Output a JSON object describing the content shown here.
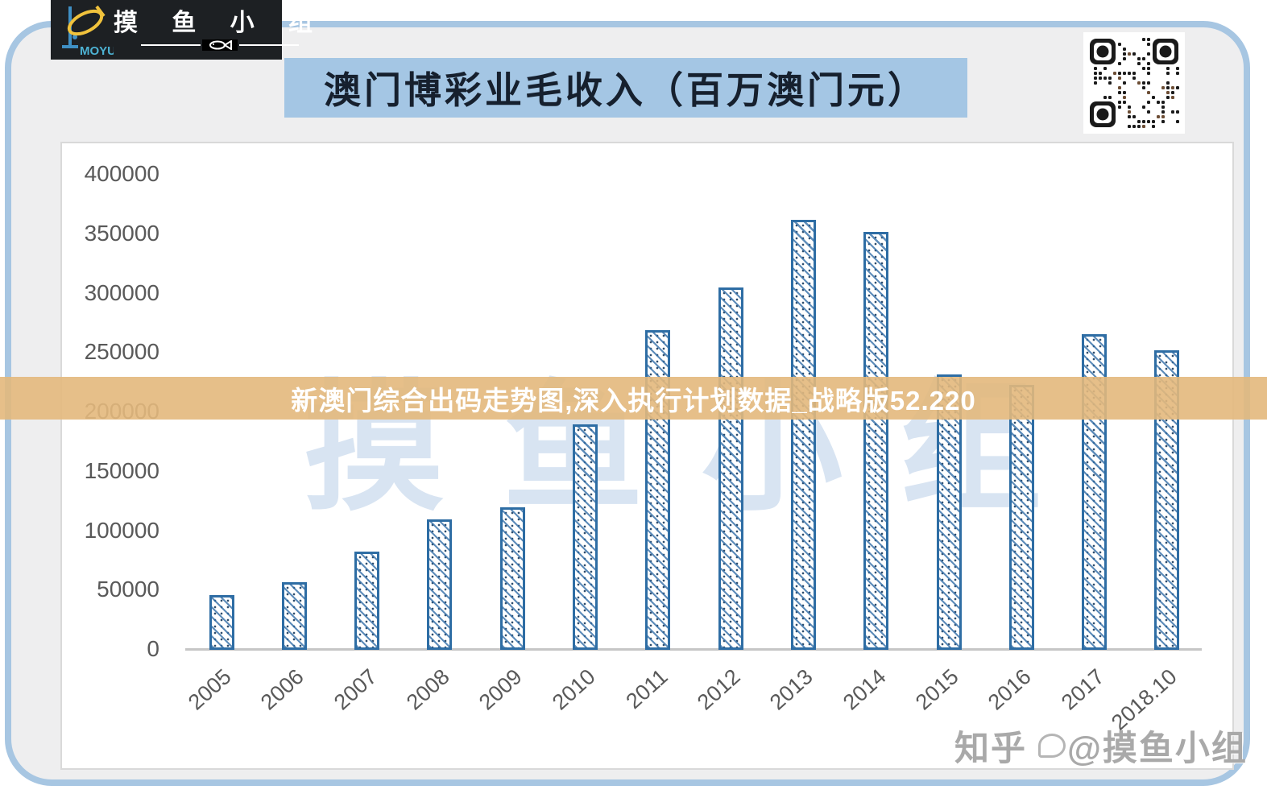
{
  "logo": {
    "brand": "MOYU",
    "group_name": "摸 鱼 小 组"
  },
  "header": {
    "title": "澳门博彩业毛收入（百万澳门元）"
  },
  "overlay_banner": {
    "text": "新澳门综合出码走势图,深入执行计划数据_战略版52.220"
  },
  "watermarks": {
    "background_text": "摸鱼小组",
    "zhihu_prefix": "知乎",
    "zhihu_at": "@摸鱼小组"
  },
  "chart_data": {
    "type": "bar",
    "title": "澳门博彩业毛收入（百万澳门元）",
    "categories": [
      "2005",
      "2006",
      "2007",
      "2008",
      "2009",
      "2010",
      "2011",
      "2012",
      "2013",
      "2014",
      "2015",
      "2016",
      "2017",
      "2018.10"
    ],
    "values": [
      46000,
      57000,
      83000,
      110000,
      120000,
      190000,
      269000,
      305000,
      362000,
      352000,
      232000,
      223000,
      266000,
      252000
    ],
    "xlabel": "",
    "ylabel": "",
    "ylim": [
      0,
      400000
    ],
    "yticks": [
      0,
      50000,
      100000,
      150000,
      200000,
      250000,
      300000,
      350000,
      400000
    ],
    "grid": false,
    "legend": false,
    "bar_style": "diagonal-hatch",
    "bar_color": "#2e6da4"
  },
  "colors": {
    "frame_border": "#a7c6e2",
    "frame_fill": "#eeeeef",
    "logo_bg": "#1d2023",
    "title_banner_bg": "#a4c6e4",
    "overlay_banner_bg": "#e3b87c",
    "bar_blue": "#2e6da4",
    "watermark_blue": "#d8e4f2",
    "axis_text": "#595959"
  }
}
